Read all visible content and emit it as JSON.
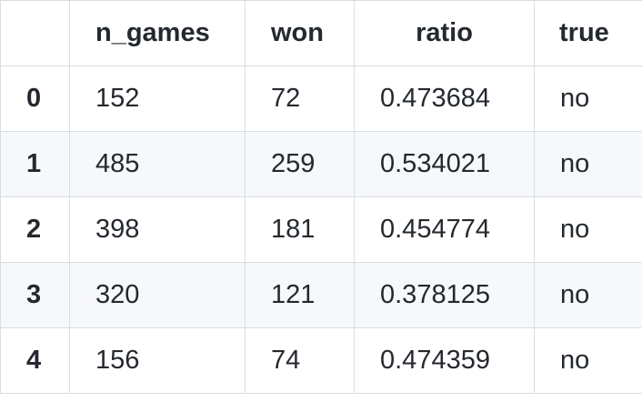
{
  "table": {
    "columns": [
      "",
      "n_games",
      "won",
      "ratio",
      "true"
    ],
    "rows": [
      {
        "index": "0",
        "n_games": "152",
        "won": "72",
        "ratio": "0.473684",
        "true": "no"
      },
      {
        "index": "1",
        "n_games": "485",
        "won": "259",
        "ratio": "0.534021",
        "true": "no"
      },
      {
        "index": "2",
        "n_games": "398",
        "won": "181",
        "ratio": "0.454774",
        "true": "no"
      },
      {
        "index": "3",
        "n_games": "320",
        "won": "121",
        "ratio": "0.378125",
        "true": "no"
      },
      {
        "index": "4",
        "n_games": "156",
        "won": "74",
        "ratio": "0.474359",
        "true": "no"
      }
    ]
  }
}
